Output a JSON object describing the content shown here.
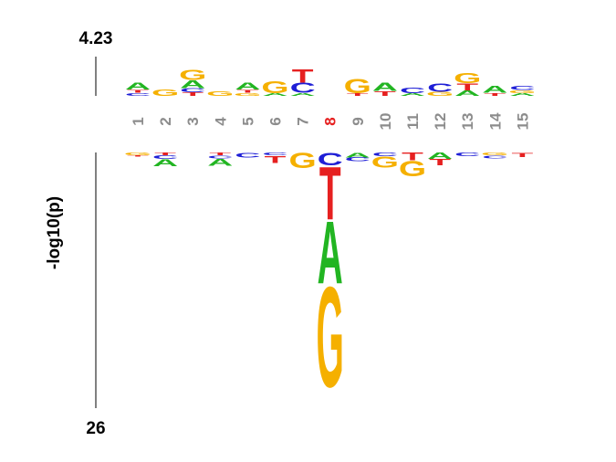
{
  "chart_data": {
    "type": "sequence-logo",
    "y_label": "-log10(p)",
    "top_max_label": "4.23",
    "bottom_max_label": "26",
    "top_max": 4.23,
    "bottom_max": 26,
    "highlight_position": "8",
    "colors": {
      "A": "#22b522",
      "C": "#1f1fd6",
      "G": "#f5b000",
      "T": "#e62020",
      "label": "#8c8c8c",
      "highlight": "#e62020"
    },
    "positions": [
      {
        "pos": "1",
        "top": [
          {
            "b": "C",
            "h": 0.35
          },
          {
            "b": "T",
            "h": 0.35
          },
          {
            "b": "A",
            "h": 0.8
          }
        ],
        "bottom": [
          {
            "b": "G",
            "h": 0.28
          },
          {
            "b": "T",
            "h": 0.12
          }
        ]
      },
      {
        "pos": "2",
        "top": [
          {
            "b": "G",
            "h": 0.7
          }
        ],
        "bottom": [
          {
            "b": "T",
            "h": 0.3
          },
          {
            "b": "C",
            "h": 0.35
          },
          {
            "b": "A",
            "h": 0.75
          }
        ]
      },
      {
        "pos": "3",
        "top": [
          {
            "b": "T",
            "h": 0.4
          },
          {
            "b": "C",
            "h": 0.45
          },
          {
            "b": "A",
            "h": 0.85
          },
          {
            "b": "G",
            "h": 1.1
          }
        ],
        "bottom": []
      },
      {
        "pos": "4",
        "top": [
          {
            "b": "G",
            "h": 0.55
          }
        ],
        "bottom": [
          {
            "b": "T",
            "h": 0.3
          },
          {
            "b": "C",
            "h": 0.3
          },
          {
            "b": "A",
            "h": 0.75
          }
        ]
      },
      {
        "pos": "5",
        "top": [
          {
            "b": "G",
            "h": 0.35
          },
          {
            "b": "T",
            "h": 0.35
          },
          {
            "b": "A",
            "h": 0.75
          }
        ],
        "bottom": [
          {
            "b": "C",
            "h": 0.5
          }
        ]
      },
      {
        "pos": "6",
        "top": [
          {
            "b": "A",
            "h": 0.3
          },
          {
            "b": "G",
            "h": 1.3
          }
        ],
        "bottom": [
          {
            "b": "C",
            "h": 0.3
          },
          {
            "b": "T",
            "h": 0.75
          }
        ]
      },
      {
        "pos": "7",
        "top": [
          {
            "b": "A",
            "h": 0.35
          },
          {
            "b": "C",
            "h": 1.1
          },
          {
            "b": "T",
            "h": 1.5
          }
        ],
        "bottom": [
          {
            "b": "G",
            "h": 1.6
          }
        ]
      },
      {
        "pos": "8",
        "top": [],
        "bottom": [
          {
            "b": "C",
            "h": 1.3
          },
          {
            "b": "T",
            "h": 5.5
          },
          {
            "b": "A",
            "h": 6.5
          },
          {
            "b": "G",
            "h": 10.5
          }
        ]
      },
      {
        "pos": "9",
        "top": [
          {
            "b": "T",
            "h": 0.3
          },
          {
            "b": "G",
            "h": 1.6
          }
        ],
        "bottom": [
          {
            "b": "A",
            "h": 0.5
          },
          {
            "b": "C",
            "h": 0.4
          }
        ]
      },
      {
        "pos": "10",
        "top": [
          {
            "b": "T",
            "h": 0.55
          },
          {
            "b": "A",
            "h": 0.9
          }
        ],
        "bottom": [
          {
            "b": "C",
            "h": 0.35
          },
          {
            "b": "G",
            "h": 1.2
          }
        ]
      },
      {
        "pos": "11",
        "top": [
          {
            "b": "A",
            "h": 0.3
          },
          {
            "b": "C",
            "h": 0.6
          }
        ],
        "bottom": [
          {
            "b": "T",
            "h": 0.8
          },
          {
            "b": "G",
            "h": 1.6
          }
        ]
      },
      {
        "pos": "12",
        "top": [
          {
            "b": "G",
            "h": 0.45
          },
          {
            "b": "C",
            "h": 0.9
          }
        ],
        "bottom": [
          {
            "b": "A",
            "h": 0.65
          },
          {
            "b": "T",
            "h": 0.65
          }
        ]
      },
      {
        "pos": "13",
        "top": [
          {
            "b": "A",
            "h": 0.6
          },
          {
            "b": "T",
            "h": 0.8
          },
          {
            "b": "G",
            "h": 1.1
          }
        ],
        "bottom": [
          {
            "b": "C",
            "h": 0.35
          }
        ]
      },
      {
        "pos": "14",
        "top": [
          {
            "b": "T",
            "h": 0.35
          },
          {
            "b": "A",
            "h": 0.75
          }
        ],
        "bottom": [
          {
            "b": "G",
            "h": 0.3
          },
          {
            "b": "C",
            "h": 0.3
          }
        ]
      },
      {
        "pos": "15",
        "top": [
          {
            "b": "A",
            "h": 0.3
          },
          {
            "b": "G",
            "h": 0.35
          },
          {
            "b": "C",
            "h": 0.45
          }
        ],
        "bottom": [
          {
            "b": "T",
            "h": 0.45
          }
        ]
      }
    ]
  }
}
